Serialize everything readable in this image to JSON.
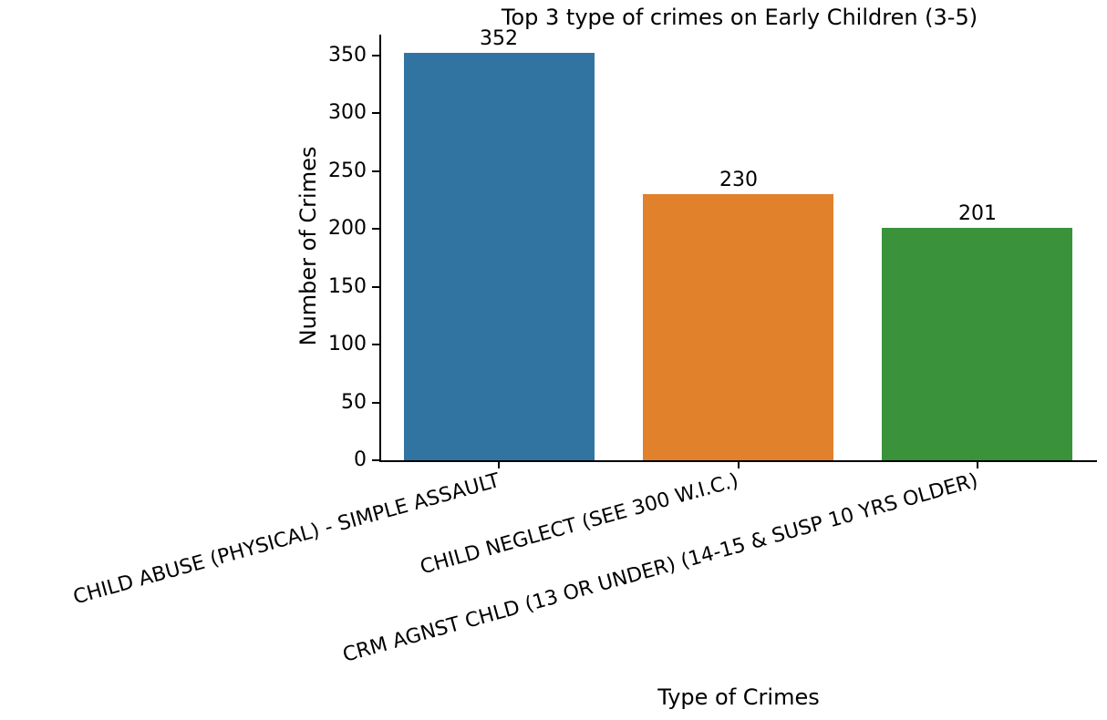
{
  "chart_data": {
    "type": "bar",
    "title": "Top 3 type of crimes on Early Children (3-5)",
    "xlabel": "Type of Crimes",
    "ylabel": "Number of Crimes",
    "categories": [
      "CHILD ABUSE (PHYSICAL) - SIMPLE ASSAULT",
      "CHILD NEGLECT (SEE 300 W.I.C.)",
      "CRM AGNST CHLD (13 OR UNDER) (14-15 & SUSP 10 YRS OLDER)"
    ],
    "values": [
      352,
      230,
      201
    ],
    "bar_labels": [
      "352",
      "230",
      "201"
    ],
    "bar_colors": [
      "#3274a1",
      "#e1812c",
      "#3a923a"
    ],
    "yticks": [
      0,
      50,
      100,
      150,
      200,
      250,
      300,
      350
    ],
    "ytick_labels": [
      "0",
      "50",
      "100",
      "150",
      "200",
      "250",
      "300",
      "350"
    ],
    "ylim": [
      0,
      368
    ],
    "grid": false,
    "legend": null,
    "spine_color": "#000000",
    "background_color": "#ffffff"
  }
}
